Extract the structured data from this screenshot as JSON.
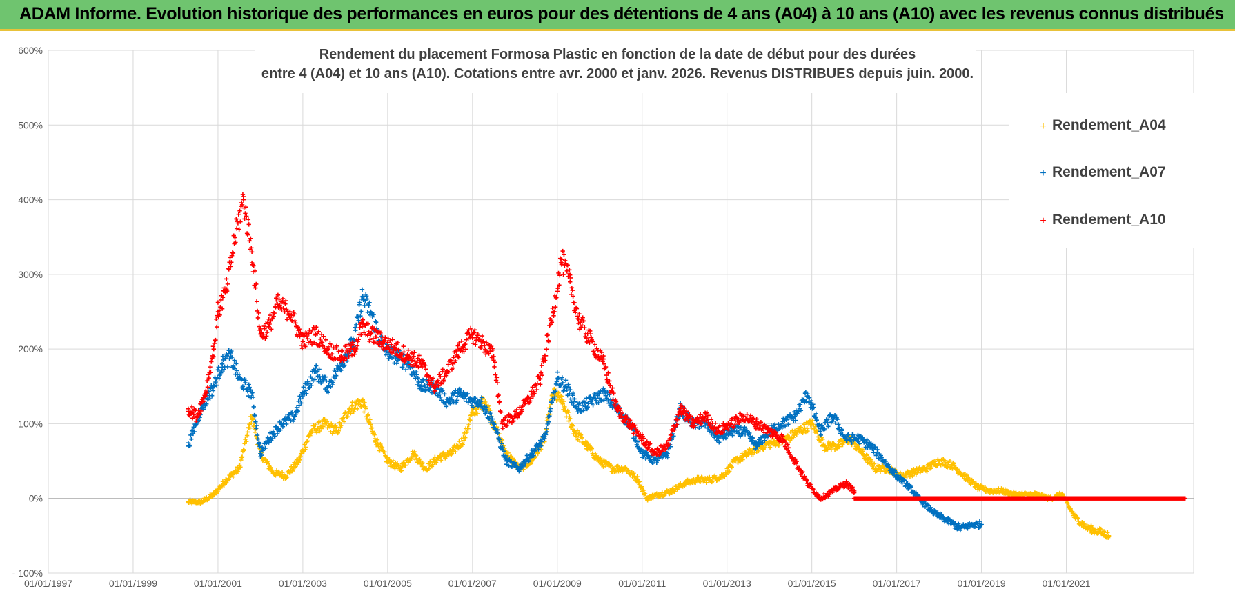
{
  "header": {
    "banner": "ADAM Informe. Evolution historique des performances en euros pour des détentions de 4 ans (A04) à 10 ans (A10) avec les revenus connus distribués"
  },
  "colors": {
    "A04": "#ffc000",
    "A07": "#0070c0",
    "A10": "#ff0000",
    "grid": "#d9d9d9",
    "banner": "#6fc46f"
  },
  "chart_data": {
    "type": "scatter",
    "title_lines": [
      "Rendement du placement Formosa Plastic  en fonction de la date de début pour des durées",
      "entre 4 (A04) et 10 ans (A10).  Cotations entre avr. 2000 et janv. 2026. Revenus DISTRIBUES depuis juin. 2000."
    ],
    "xlabel": "",
    "ylabel": "",
    "xlim": [
      1997.0,
      2024.0
    ],
    "ylim": [
      -100,
      600
    ],
    "x_ticks": [
      1997,
      1999,
      2001,
      2003,
      2005,
      2007,
      2009,
      2011,
      2013,
      2015,
      2017,
      2019,
      2021
    ],
    "x_tick_labels": [
      "01/01/1997",
      "01/01/1999",
      "01/01/2001",
      "01/01/2003",
      "01/01/2005",
      "01/01/2007",
      "01/01/2009",
      "01/01/2011",
      "01/01/2013",
      "01/01/2015",
      "01/01/2017",
      "01/01/2019",
      "01/01/2021"
    ],
    "y_ticks": [
      -100,
      0,
      100,
      200,
      300,
      400,
      500,
      600
    ],
    "y_tick_labels": [
      "- 100%",
      "0%",
      "100%",
      "200%",
      "300%",
      "400%",
      "500%",
      "600%"
    ],
    "legend_position": "top-right",
    "series": [
      {
        "name": "Rendement_A04",
        "color": "#ffc000",
        "x": [
          2000.3,
          2000.6,
          2000.9,
          2001.2,
          2001.5,
          2001.8,
          2002.0,
          2002.3,
          2002.6,
          2002.9,
          2003.2,
          2003.5,
          2003.8,
          2004.1,
          2004.4,
          2004.7,
          2005.0,
          2005.3,
          2005.6,
          2005.9,
          2006.2,
          2006.5,
          2006.8,
          2007.0,
          2007.3,
          2007.5,
          2007.8,
          2008.1,
          2008.4,
          2008.7,
          2008.9,
          2009.1,
          2009.4,
          2009.7,
          2010.0,
          2010.3,
          2010.6,
          2010.9,
          2011.1,
          2011.4,
          2011.7,
          2012.0,
          2012.3,
          2012.6,
          2012.9,
          2013.2,
          2013.5,
          2013.8,
          2014.1,
          2014.4,
          2014.7,
          2015.0,
          2015.3,
          2015.6,
          2015.9,
          2016.2,
          2016.5,
          2016.8,
          2017.1,
          2017.4,
          2017.7,
          2018.0,
          2018.3,
          2018.6,
          2018.9,
          2019.2,
          2019.5,
          2019.8,
          2020.1,
          2020.3,
          2020.6,
          2020.9,
          2021.2,
          2021.5,
          2021.8,
          2022.0
        ],
        "y": [
          -5,
          -5,
          5,
          25,
          40,
          110,
          60,
          35,
          30,
          50,
          90,
          100,
          90,
          120,
          130,
          80,
          50,
          40,
          60,
          40,
          55,
          60,
          80,
          115,
          130,
          100,
          60,
          40,
          50,
          80,
          140,
          130,
          90,
          70,
          50,
          40,
          40,
          25,
          0,
          5,
          10,
          20,
          25,
          25,
          30,
          50,
          60,
          70,
          75,
          80,
          90,
          100,
          70,
          70,
          80,
          60,
          40,
          40,
          30,
          35,
          40,
          50,
          45,
          30,
          15,
          10,
          10,
          5,
          5,
          5,
          0,
          5,
          -25,
          -40,
          -45,
          -50
        ]
      },
      {
        "name": "Rendement_A07",
        "color": "#0070c0",
        "x": [
          2000.3,
          2000.6,
          2000.9,
          2001.1,
          2001.3,
          2001.5,
          2001.8,
          2002.0,
          2002.2,
          2002.5,
          2002.8,
          2003.0,
          2003.3,
          2003.6,
          2003.9,
          2004.2,
          2004.4,
          2004.6,
          2004.9,
          2005.2,
          2005.5,
          2005.8,
          2006.1,
          2006.4,
          2006.7,
          2007.0,
          2007.2,
          2007.5,
          2007.8,
          2008.1,
          2008.4,
          2008.7,
          2009.0,
          2009.2,
          2009.5,
          2009.8,
          2010.1,
          2010.4,
          2010.7,
          2011.0,
          2011.3,
          2011.6,
          2011.9,
          2012.2,
          2012.5,
          2012.8,
          2013.1,
          2013.4,
          2013.7,
          2014.0,
          2014.3,
          2014.6,
          2014.9,
          2015.2,
          2015.5,
          2015.8,
          2016.1,
          2016.4,
          2016.7,
          2017.0,
          2017.3,
          2017.6,
          2017.9,
          2018.2,
          2018.5,
          2018.8,
          2019.0
        ],
        "y": [
          70,
          120,
          150,
          180,
          190,
          160,
          140,
          60,
          80,
          100,
          110,
          140,
          170,
          150,
          180,
          210,
          270,
          250,
          200,
          190,
          180,
          150,
          150,
          130,
          140,
          130,
          130,
          100,
          50,
          40,
          60,
          80,
          160,
          150,
          120,
          130,
          140,
          120,
          100,
          60,
          50,
          60,
          120,
          100,
          100,
          80,
          90,
          90,
          70,
          90,
          100,
          110,
          140,
          90,
          110,
          80,
          80,
          70,
          50,
          30,
          15,
          -5,
          -20,
          -30,
          -40,
          -35,
          -35
        ]
      },
      {
        "name": "Rendement_A10",
        "color": "#ff0000",
        "x": [
          2000.3,
          2000.5,
          2000.7,
          2000.9,
          2001.0,
          2001.2,
          2001.4,
          2001.6,
          2001.8,
          2002.0,
          2002.2,
          2002.4,
          2002.7,
          2003.0,
          2003.3,
          2003.6,
          2003.9,
          2004.2,
          2004.4,
          2004.6,
          2004.9,
          2005.2,
          2005.5,
          2005.8,
          2006.1,
          2006.4,
          2006.7,
          2007.0,
          2007.2,
          2007.5,
          2007.7,
          2008.0,
          2008.3,
          2008.6,
          2008.9,
          2009.1,
          2009.3,
          2009.5,
          2009.8,
          2010.1,
          2010.4,
          2010.7,
          2011.0,
          2011.3,
          2011.6,
          2011.9,
          2012.2,
          2012.5,
          2012.8,
          2013.1,
          2013.4,
          2013.7,
          2014.0,
          2014.3,
          2014.6,
          2014.9,
          2015.2,
          2015.5,
          2015.8,
          2016.0
        ],
        "y": [
          120,
          110,
          140,
          200,
          250,
          280,
          350,
          400,
          330,
          220,
          230,
          260,
          250,
          210,
          220,
          200,
          190,
          200,
          230,
          220,
          210,
          200,
          190,
          180,
          150,
          170,
          200,
          220,
          210,
          190,
          100,
          110,
          130,
          160,
          250,
          320,
          290,
          240,
          210,
          180,
          120,
          100,
          80,
          60,
          70,
          120,
          100,
          110,
          90,
          100,
          110,
          100,
          90,
          80,
          50,
          20,
          0,
          10,
          20,
          10
        ]
      }
    ],
    "flat_segment": {
      "series": "Rendement_A10",
      "x_start": 2016.0,
      "x_end": 2023.8,
      "y": 0
    }
  }
}
